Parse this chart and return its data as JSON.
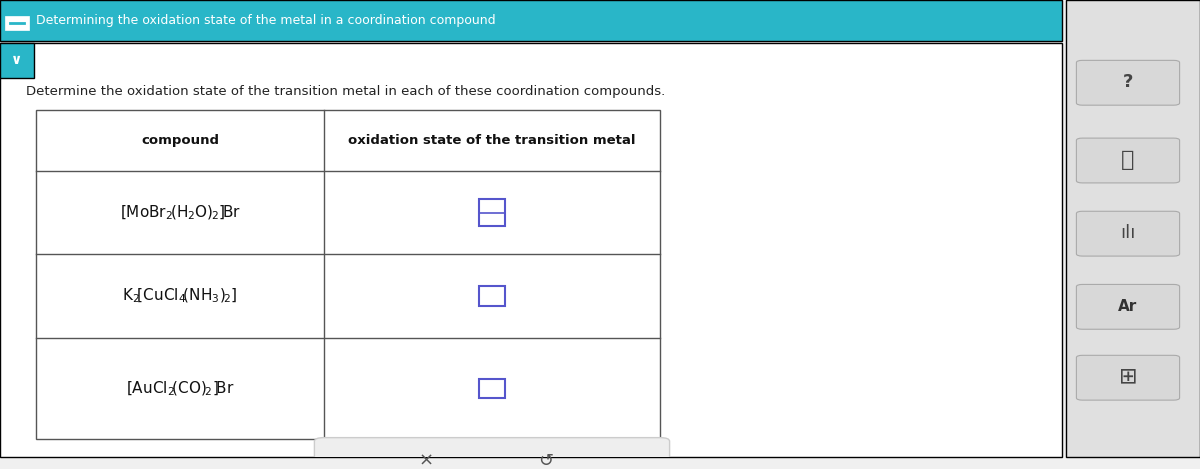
{
  "title_bar_text": "Determining the oxidation state of the metal in a coordination compound",
  "title_bar_color": "#29b6c8",
  "title_bar_text_color": "#ffffff",
  "instruction_text": "Determine the oxidation state of the transition metal in each of these coordination compounds.",
  "instruction_text_color": "#222222",
  "background_color": "#ffffff",
  "table_border_color": "#555555",
  "col1_header": "compound",
  "col2_header": "oxidation state of the transition metal",
  "rows": [
    {
      "input_box_color": "#5555cc",
      "divided": true
    },
    {
      "input_box_color": "#5555cc",
      "divided": false
    },
    {
      "input_box_color": "#5555cc",
      "divided": false
    }
  ],
  "button_area_color": "#eeeeee",
  "button_border_color": "#cccccc",
  "x_button_text": "×",
  "undo_button_text": "↺",
  "page_bg_color": "#f0f0f0",
  "right_panel_color": "#e0e0e0",
  "icon_bg_color": "#d8d8d8",
  "icon_border_color": "#aaaaaa"
}
